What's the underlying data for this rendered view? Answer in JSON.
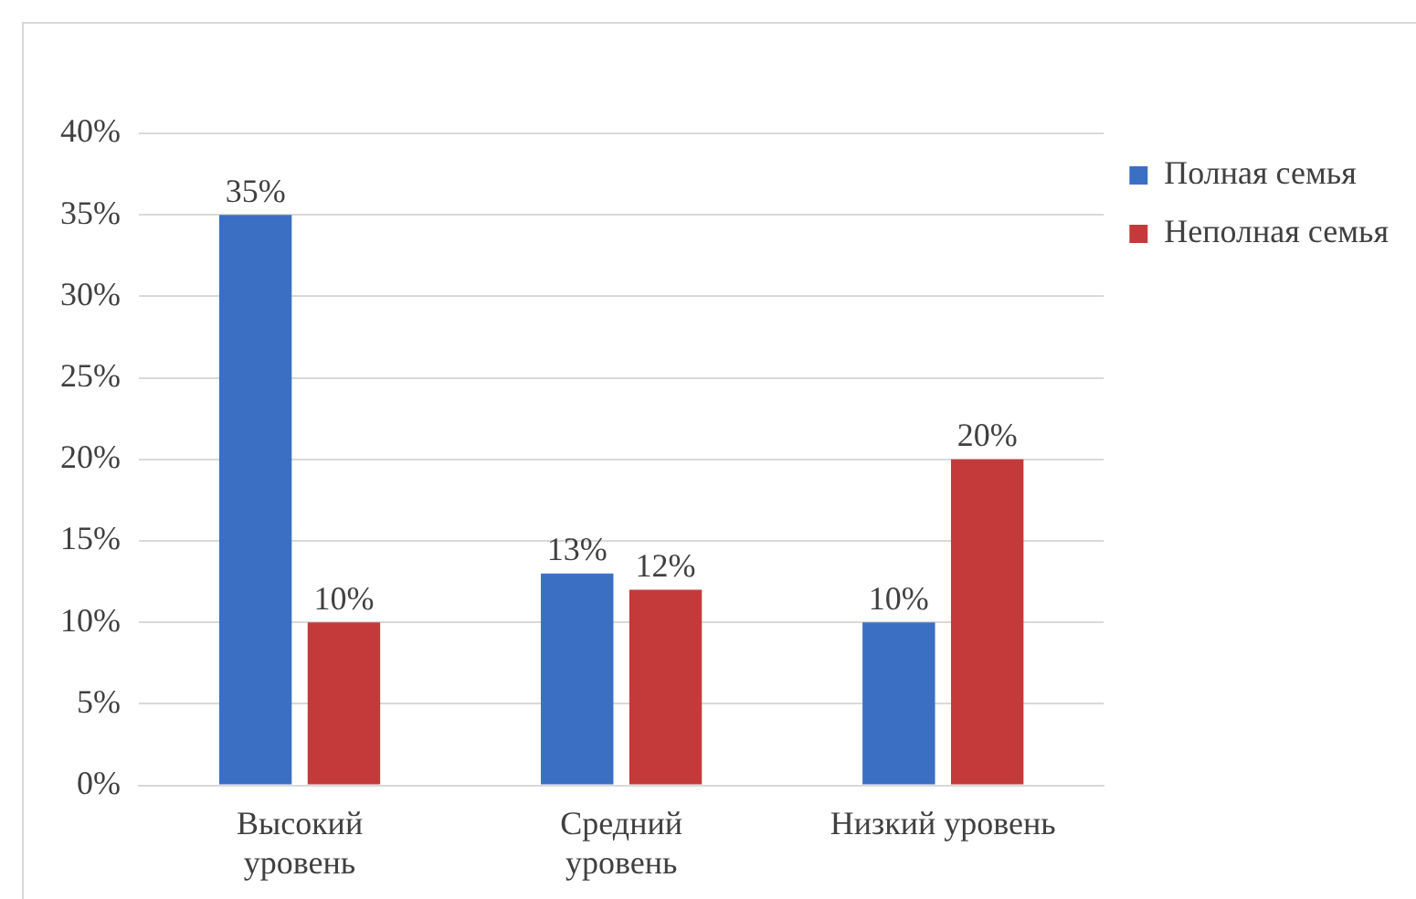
{
  "chart_data": {
    "type": "bar",
    "categories": [
      "Высокий\nуровень",
      "Средний\nуровень",
      "Низкий уровень"
    ],
    "series": [
      {
        "name": "Полная семья",
        "color": "#3b6fc4",
        "values": [
          35,
          13,
          10
        ]
      },
      {
        "name": "Неполная семья",
        "color": "#c43a3a",
        "values": [
          10,
          12,
          20
        ]
      }
    ],
    "ylim": [
      0,
      40
    ],
    "yticks": [
      {
        "value": 0,
        "label": "0%"
      },
      {
        "value": 5,
        "label": "5%"
      },
      {
        "value": 10,
        "label": "10%"
      },
      {
        "value": 15,
        "label": "15%"
      },
      {
        "value": 20,
        "label": "20%"
      },
      {
        "value": 25,
        "label": "25%"
      },
      {
        "value": 30,
        "label": "30%"
      },
      {
        "value": 35,
        "label": "35%"
      },
      {
        "value": 40,
        "label": "40%"
      }
    ],
    "value_labels": [
      [
        "35%",
        "13%",
        "10%"
      ],
      [
        "10%",
        "12%",
        "20%"
      ]
    ],
    "grid": "y",
    "legend": "top right"
  }
}
